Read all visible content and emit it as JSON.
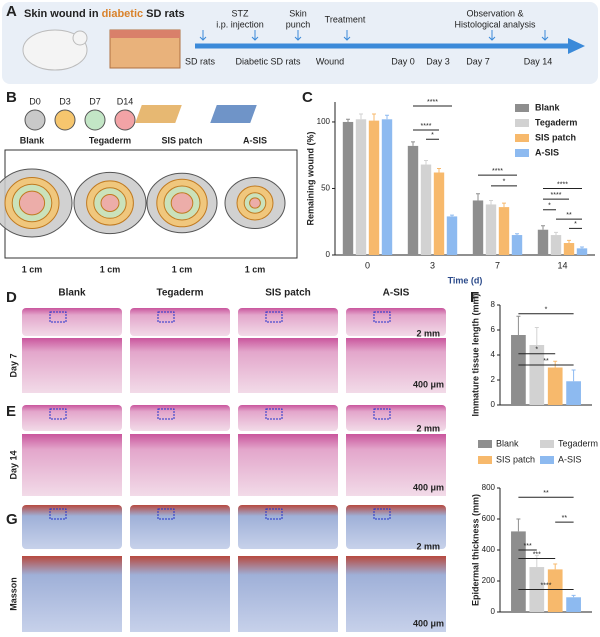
{
  "panel_labels": [
    "A",
    "B",
    "C",
    "D",
    "E",
    "F",
    "G"
  ],
  "panel_a": {
    "title_parts": [
      "Skin wound in",
      "diabetic",
      "SD rats"
    ],
    "steps": [
      "STZ",
      "i.p. injection",
      "Skin",
      "punch",
      "Treatment",
      "Observation &",
      "Histological analysis"
    ],
    "stages": [
      "SD rats",
      "Diabetic SD rats",
      "Wound",
      "Day 0",
      "Day 3",
      "Day 7",
      "Day 14"
    ]
  },
  "panel_b": {
    "days": [
      {
        "name": "D0",
        "color": "#c9c9c9"
      },
      {
        "name": "D3",
        "color": "#f6c66e"
      },
      {
        "name": "D7",
        "color": "#c3e6c6"
      },
      {
        "name": "D14",
        "color": "#f2a3a6"
      }
    ],
    "groups": [
      "Blank",
      "Tegaderm",
      "SIS patch",
      "A-SIS"
    ],
    "scale": "1 cm"
  },
  "histology": {
    "groups": [
      "Blank",
      "Tegaderm",
      "SIS patch",
      "A-SIS"
    ],
    "rows": [
      "Day 7",
      "Day 14",
      "Masson"
    ],
    "scale_low": "2 mm",
    "scale_high": "400 μm"
  },
  "chart_data": [
    {
      "type": "bar",
      "categories": [
        "0",
        "3",
        "7",
        "14"
      ],
      "x_label": "Time (d)",
      "y_label": "Remaining wound (%)",
      "ylim": [
        0,
        115
      ],
      "yticks": [
        0,
        50,
        100
      ],
      "series": [
        {
          "name": "Blank",
          "color": "#8e8e8e",
          "values": [
            100,
            82,
            41,
            19
          ],
          "errors": [
            2,
            3,
            5,
            3
          ]
        },
        {
          "name": "Tegaderm",
          "color": "#d2d2d2",
          "values": [
            102,
            68,
            38,
            15
          ],
          "errors": [
            4,
            3,
            3,
            2
          ]
        },
        {
          "name": "SIS patch",
          "color": "#f7b96c",
          "values": [
            101,
            62,
            36,
            9
          ],
          "errors": [
            5,
            3,
            3,
            2
          ]
        },
        {
          "name": "A-SIS",
          "color": "#8dbaf0",
          "values": [
            102,
            29,
            15,
            5
          ],
          "errors": [
            3,
            1,
            1,
            1
          ]
        }
      ],
      "annotations": [
        "****",
        "****",
        "*",
        "****",
        "*",
        "****",
        "****",
        "*",
        "**",
        "*"
      ]
    },
    {
      "type": "bar",
      "y_label": "Immature tissue length (mm)",
      "ylim": [
        0,
        8
      ],
      "yticks": [
        0,
        2,
        4,
        6,
        8
      ],
      "series": [
        {
          "name": "Blank",
          "color": "#8e8e8e",
          "values": [
            5.6
          ],
          "errors": [
            1.5
          ]
        },
        {
          "name": "Tegaderm",
          "color": "#d2d2d2",
          "values": [
            4.8
          ],
          "errors": [
            1.4
          ]
        },
        {
          "name": "SIS patch",
          "color": "#f7b96c",
          "values": [
            3.0
          ],
          "errors": [
            0.5
          ]
        },
        {
          "name": "A-SIS",
          "color": "#8dbaf0",
          "values": [
            1.9
          ],
          "errors": [
            0.9
          ]
        }
      ],
      "annotations": [
        "*",
        "*",
        "**"
      ]
    },
    {
      "type": "bar",
      "y_label": "Epidermal thickness (mm)",
      "ylim": [
        0,
        800
      ],
      "yticks": [
        0,
        200,
        400,
        600,
        800
      ],
      "series": [
        {
          "name": "Blank",
          "color": "#8e8e8e",
          "values": [
            520
          ],
          "errors": [
            80
          ]
        },
        {
          "name": "Tegaderm",
          "color": "#d2d2d2",
          "values": [
            290
          ],
          "errors": [
            75
          ]
        },
        {
          "name": "SIS patch",
          "color": "#f7b96c",
          "values": [
            275
          ],
          "errors": [
            35
          ]
        },
        {
          "name": "A-SIS",
          "color": "#8dbaf0",
          "values": [
            95
          ],
          "errors": [
            12
          ]
        }
      ],
      "annotations": [
        "***",
        "***",
        "****",
        "**",
        "**"
      ]
    }
  ]
}
